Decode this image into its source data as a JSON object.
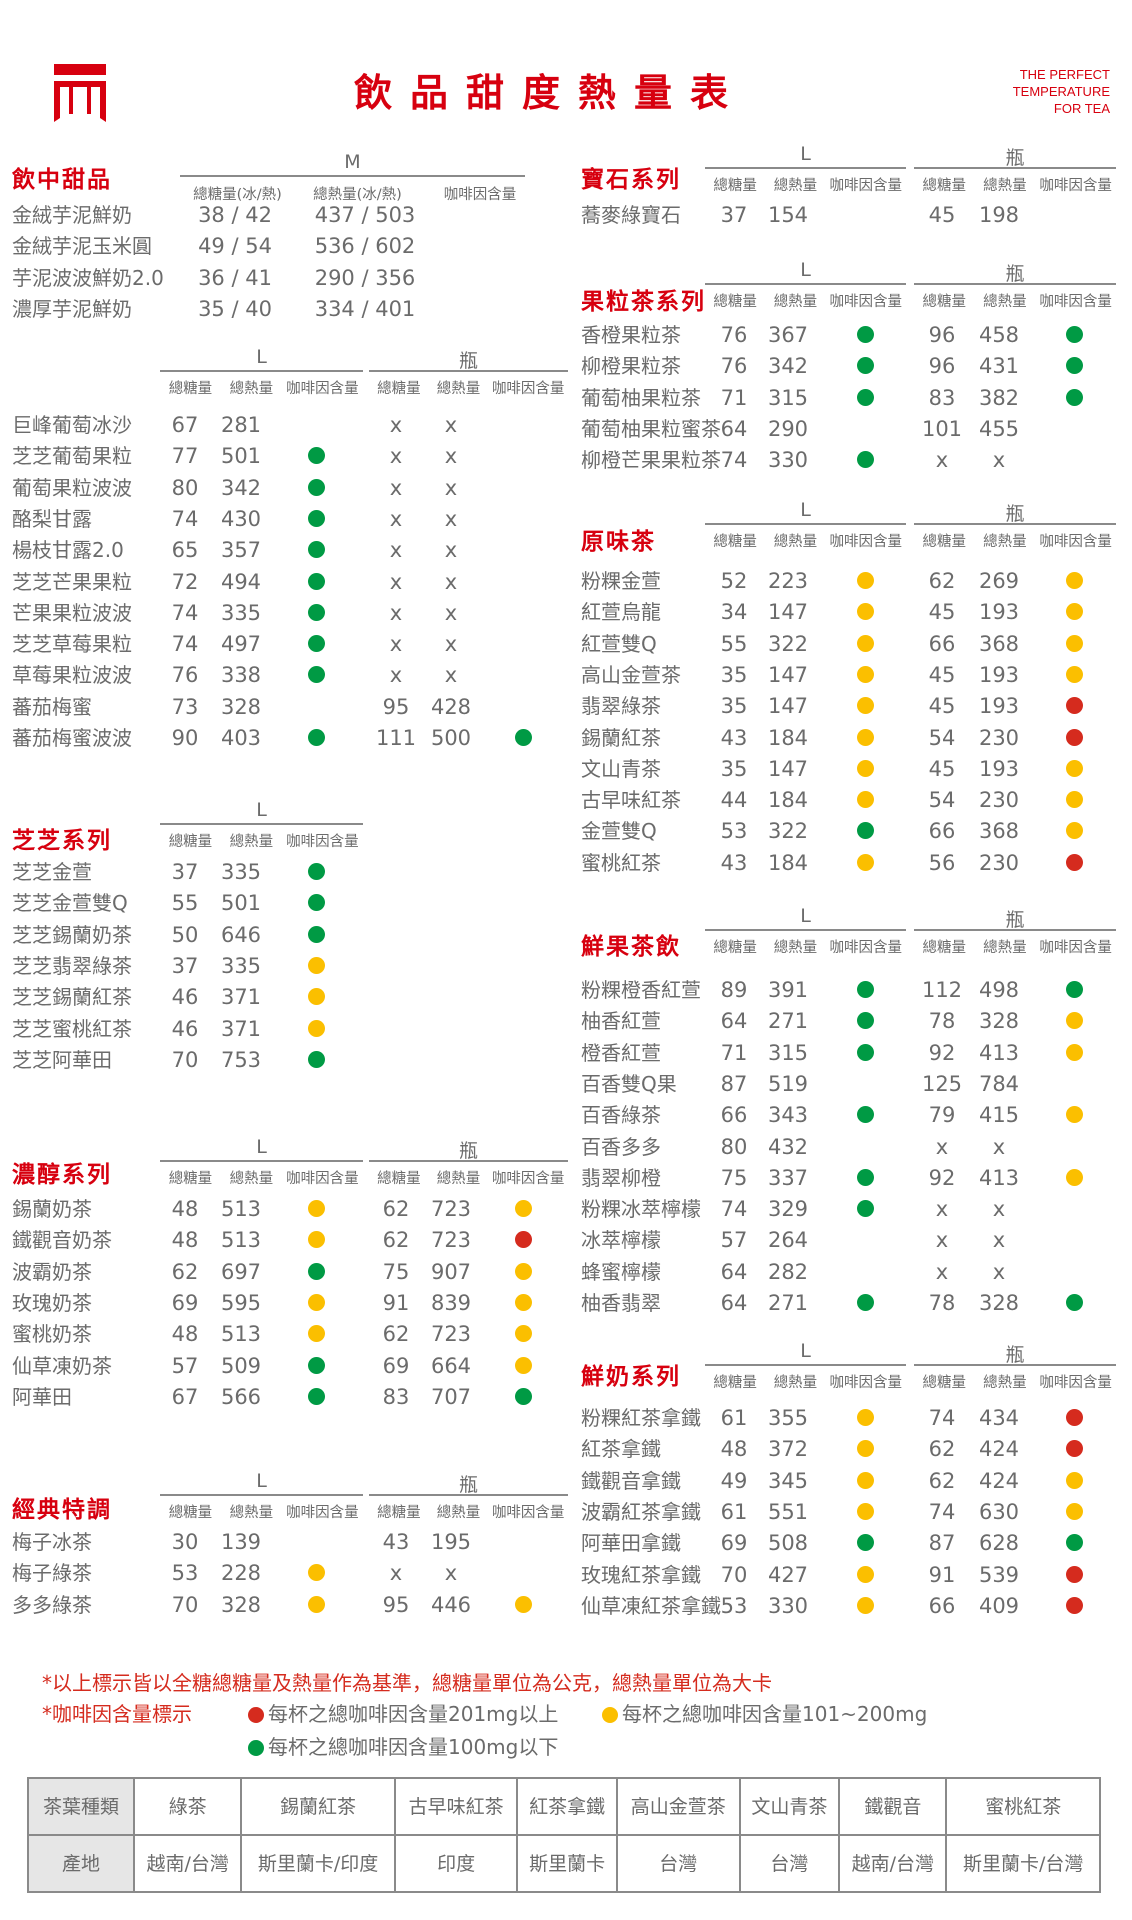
{
  "header": {
    "title": "飲品甜度熱量表",
    "tagline": [
      "THE PERFECT",
      "TEMPERATURE",
      "FOR TEA"
    ]
  },
  "caffeine_colors": {
    "red": "#d52b1e",
    "yellow": "#fbbf00",
    "green": "#009a44"
  },
  "brand_color": "#d7000f",
  "sections": [
    {
      "id": "dessert",
      "title": "飲中甜品",
      "sizes": [
        "M"
      ],
      "subheaders": [
        "總糖量(冰/熱)",
        "總熱量(冰/熱)",
        "咖啡因含量"
      ],
      "rows": [
        {
          "name": "金絨芋泥鮮奶",
          "values": [
            "38 / 42",
            "437 / 503",
            ""
          ]
        },
        {
          "name": "金絨芋泥玉米圓",
          "values": [
            "49 / 54",
            "536 / 602",
            ""
          ]
        },
        {
          "name": "芋泥波波鮮奶2.0",
          "values": [
            "36 / 41",
            "290 / 356",
            ""
          ]
        },
        {
          "name": "濃厚芋泥鮮奶",
          "values": [
            "35 / 40",
            "334 / 401",
            ""
          ]
        }
      ]
    },
    {
      "id": "fruit-smoothie",
      "title": "",
      "sizes": [
        "L",
        "瓶"
      ],
      "subheaders": [
        "總糖量",
        "總熱量",
        "咖啡因含量",
        "總糖量",
        "總熱量",
        "咖啡因含量"
      ],
      "rows": [
        {
          "name": "巨峰葡萄冰沙",
          "values": [
            "67",
            "281",
            "",
            "x",
            "x",
            ""
          ]
        },
        {
          "name": "芝芝葡萄果粒",
          "values": [
            "77",
            "501",
            "green",
            "x",
            "x",
            ""
          ]
        },
        {
          "name": "葡萄果粒波波",
          "values": [
            "80",
            "342",
            "green",
            "x",
            "x",
            ""
          ]
        },
        {
          "name": "酪梨甘露",
          "values": [
            "74",
            "430",
            "green",
            "x",
            "x",
            ""
          ]
        },
        {
          "name": "楊枝甘露2.0",
          "values": [
            "65",
            "357",
            "green",
            "x",
            "x",
            ""
          ]
        },
        {
          "name": "芝芝芒果果粒",
          "values": [
            "72",
            "494",
            "green",
            "x",
            "x",
            ""
          ]
        },
        {
          "name": "芒果果粒波波",
          "values": [
            "74",
            "335",
            "green",
            "x",
            "x",
            ""
          ]
        },
        {
          "name": "芝芝草莓果粒",
          "values": [
            "74",
            "497",
            "green",
            "x",
            "x",
            ""
          ]
        },
        {
          "name": "草莓果粒波波",
          "values": [
            "76",
            "338",
            "green",
            "x",
            "x",
            ""
          ]
        },
        {
          "name": "蕃茄梅蜜",
          "values": [
            "73",
            "328",
            "",
            "95",
            "428",
            ""
          ]
        },
        {
          "name": "蕃茄梅蜜波波",
          "values": [
            "90",
            "403",
            "green",
            "111",
            "500",
            "green"
          ]
        }
      ]
    },
    {
      "id": "zhizhi",
      "title": "芝芝系列",
      "sizes": [
        "L"
      ],
      "subheaders": [
        "總糖量",
        "總熱量",
        "咖啡因含量"
      ],
      "rows": [
        {
          "name": "芝芝金萱",
          "values": [
            "37",
            "335",
            "green"
          ]
        },
        {
          "name": "芝芝金萱雙Q",
          "values": [
            "55",
            "501",
            "green"
          ]
        },
        {
          "name": "芝芝錫蘭奶茶",
          "values": [
            "50",
            "646",
            "green"
          ]
        },
        {
          "name": "芝芝翡翠綠茶",
          "values": [
            "37",
            "335",
            "yellow"
          ]
        },
        {
          "name": "芝芝錫蘭紅茶",
          "values": [
            "46",
            "371",
            "yellow"
          ]
        },
        {
          "name": "芝芝蜜桃紅茶",
          "values": [
            "46",
            "371",
            "yellow"
          ]
        },
        {
          "name": "芝芝阿華田",
          "values": [
            "70",
            "753",
            "green"
          ]
        }
      ]
    },
    {
      "id": "rich",
      "title": "濃醇系列",
      "sizes": [
        "L",
        "瓶"
      ],
      "subheaders": [
        "總糖量",
        "總熱量",
        "咖啡因含量",
        "總糖量",
        "總熱量",
        "咖啡因含量"
      ],
      "rows": [
        {
          "name": "錫蘭奶茶",
          "values": [
            "48",
            "513",
            "yellow",
            "62",
            "723",
            "yellow"
          ]
        },
        {
          "name": "鐵觀音奶茶",
          "values": [
            "48",
            "513",
            "yellow",
            "62",
            "723",
            "red"
          ]
        },
        {
          "name": "波霸奶茶",
          "values": [
            "62",
            "697",
            "green",
            "75",
            "907",
            "yellow"
          ]
        },
        {
          "name": "玫瑰奶茶",
          "values": [
            "69",
            "595",
            "yellow",
            "91",
            "839",
            "yellow"
          ]
        },
        {
          "name": "蜜桃奶茶",
          "values": [
            "48",
            "513",
            "yellow",
            "62",
            "723",
            "yellow"
          ]
        },
        {
          "name": "仙草凍奶茶",
          "values": [
            "57",
            "509",
            "green",
            "69",
            "664",
            "yellow"
          ]
        },
        {
          "name": "阿華田",
          "values": [
            "67",
            "566",
            "green",
            "83",
            "707",
            "green"
          ]
        }
      ]
    },
    {
      "id": "classic",
      "title": "經典特調",
      "sizes": [
        "L",
        "瓶"
      ],
      "subheaders": [
        "總糖量",
        "總熱量",
        "咖啡因含量",
        "總糖量",
        "總熱量",
        "咖啡因含量"
      ],
      "rows": [
        {
          "name": "梅子冰茶",
          "values": [
            "30",
            "139",
            "",
            "43",
            "195",
            ""
          ]
        },
        {
          "name": "梅子綠茶",
          "values": [
            "53",
            "228",
            "yellow",
            "x",
            "x",
            ""
          ]
        },
        {
          "name": "多多綠茶",
          "values": [
            "70",
            "328",
            "yellow",
            "95",
            "446",
            "yellow"
          ]
        }
      ]
    },
    {
      "id": "gem",
      "title": "寶石系列",
      "sizes": [
        "L",
        "瓶"
      ],
      "subheaders": [
        "總糖量",
        "總熱量",
        "咖啡因含量",
        "總糖量",
        "總熱量",
        "咖啡因含量"
      ],
      "rows": [
        {
          "name": "蕎麥綠寶石",
          "values": [
            "37",
            "154",
            "",
            "45",
            "198",
            ""
          ]
        }
      ]
    },
    {
      "id": "fruit-tea",
      "title": "果粒茶系列",
      "sizes": [
        "L",
        "瓶"
      ],
      "subheaders": [
        "總糖量",
        "總熱量",
        "咖啡因含量",
        "總糖量",
        "總熱量",
        "咖啡因含量"
      ],
      "rows": [
        {
          "name": "香橙果粒茶",
          "values": [
            "76",
            "367",
            "green",
            "96",
            "458",
            "green"
          ]
        },
        {
          "name": "柳橙果粒茶",
          "values": [
            "76",
            "342",
            "green",
            "96",
            "431",
            "green"
          ]
        },
        {
          "name": "葡萄柚果粒茶",
          "values": [
            "71",
            "315",
            "green",
            "83",
            "382",
            "green"
          ]
        },
        {
          "name": "葡萄柚果粒蜜茶",
          "values": [
            "64",
            "290",
            "",
            "101",
            "455",
            ""
          ]
        },
        {
          "name": "柳橙芒果果粒茶",
          "values": [
            "74",
            "330",
            "green",
            "x",
            "x",
            ""
          ]
        }
      ]
    },
    {
      "id": "original",
      "title": "原味茶",
      "sizes": [
        "L",
        "瓶"
      ],
      "subheaders": [
        "總糖量",
        "總熱量",
        "咖啡因含量",
        "總糖量",
        "總熱量",
        "咖啡因含量"
      ],
      "rows": [
        {
          "name": "粉粿金萱",
          "values": [
            "52",
            "223",
            "yellow",
            "62",
            "269",
            "yellow"
          ]
        },
        {
          "name": "紅萱烏龍",
          "values": [
            "34",
            "147",
            "yellow",
            "45",
            "193",
            "yellow"
          ]
        },
        {
          "name": "紅萱雙Q",
          "values": [
            "55",
            "322",
            "yellow",
            "66",
            "368",
            "yellow"
          ]
        },
        {
          "name": "高山金萱茶",
          "values": [
            "35",
            "147",
            "yellow",
            "45",
            "193",
            "yellow"
          ]
        },
        {
          "name": "翡翠綠茶",
          "values": [
            "35",
            "147",
            "yellow",
            "45",
            "193",
            "red"
          ]
        },
        {
          "name": "錫蘭紅茶",
          "values": [
            "43",
            "184",
            "yellow",
            "54",
            "230",
            "red"
          ]
        },
        {
          "name": "文山青茶",
          "values": [
            "35",
            "147",
            "yellow",
            "45",
            "193",
            "yellow"
          ]
        },
        {
          "name": "古早味紅茶",
          "values": [
            "44",
            "184",
            "yellow",
            "54",
            "230",
            "yellow"
          ]
        },
        {
          "name": "金萱雙Q",
          "values": [
            "53",
            "322",
            "green",
            "66",
            "368",
            "yellow"
          ]
        },
        {
          "name": "蜜桃紅茶",
          "values": [
            "43",
            "184",
            "yellow",
            "56",
            "230",
            "red"
          ]
        }
      ]
    },
    {
      "id": "fresh-fruit",
      "title": "鮮果茶飲",
      "sizes": [
        "L",
        "瓶"
      ],
      "subheaders": [
        "總糖量",
        "總熱量",
        "咖啡因含量",
        "總糖量",
        "總熱量",
        "咖啡因含量"
      ],
      "rows": [
        {
          "name": "粉粿橙香紅萱",
          "values": [
            "89",
            "391",
            "green",
            "112",
            "498",
            "green"
          ]
        },
        {
          "name": "柚香紅萱",
          "values": [
            "64",
            "271",
            "green",
            "78",
            "328",
            "yellow"
          ]
        },
        {
          "name": "橙香紅萱",
          "values": [
            "71",
            "315",
            "green",
            "92",
            "413",
            "yellow"
          ]
        },
        {
          "name": "百香雙Q果",
          "values": [
            "87",
            "519",
            "",
            "125",
            "784",
            ""
          ]
        },
        {
          "name": "百香綠茶",
          "values": [
            "66",
            "343",
            "green",
            "79",
            "415",
            "yellow"
          ]
        },
        {
          "name": "百香多多",
          "values": [
            "80",
            "432",
            "",
            "x",
            "x",
            ""
          ]
        },
        {
          "name": "翡翠柳橙",
          "values": [
            "75",
            "337",
            "green",
            "92",
            "413",
            "yellow"
          ]
        },
        {
          "name": "粉粿冰萃檸檬",
          "values": [
            "74",
            "329",
            "green",
            "x",
            "x",
            ""
          ]
        },
        {
          "name": "冰萃檸檬",
          "values": [
            "57",
            "264",
            "",
            "x",
            "x",
            ""
          ]
        },
        {
          "name": "蜂蜜檸檬",
          "values": [
            "64",
            "282",
            "",
            "x",
            "x",
            ""
          ]
        },
        {
          "name": "柚香翡翠",
          "values": [
            "64",
            "271",
            "green",
            "78",
            "328",
            "green"
          ]
        }
      ]
    },
    {
      "id": "fresh-milk",
      "title": "鮮奶系列",
      "sizes": [
        "L",
        "瓶"
      ],
      "subheaders": [
        "總糖量",
        "總熱量",
        "咖啡因含量",
        "總糖量",
        "總熱量",
        "咖啡因含量"
      ],
      "rows": [
        {
          "name": "粉粿紅茶拿鐵",
          "values": [
            "61",
            "355",
            "yellow",
            "74",
            "434",
            "red"
          ]
        },
        {
          "name": "紅茶拿鐵",
          "values": [
            "48",
            "372",
            "yellow",
            "62",
            "424",
            "red"
          ]
        },
        {
          "name": "鐵觀音拿鐵",
          "values": [
            "49",
            "345",
            "yellow",
            "62",
            "424",
            "yellow"
          ]
        },
        {
          "name": "波霸紅茶拿鐵",
          "values": [
            "61",
            "551",
            "yellow",
            "74",
            "630",
            "yellow"
          ]
        },
        {
          "name": "阿華田拿鐵",
          "values": [
            "69",
            "508",
            "green",
            "87",
            "628",
            "green"
          ]
        },
        {
          "name": "玫瑰紅茶拿鐵",
          "values": [
            "70",
            "427",
            "yellow",
            "91",
            "539",
            "red"
          ]
        },
        {
          "name": "仙草凍紅茶拿鐵",
          "values": [
            "53",
            "330",
            "yellow",
            "66",
            "409",
            "red"
          ]
        }
      ]
    }
  ],
  "notes": {
    "basis": "*以上標示皆以全糖總糖量及熱量作為基準，總糖量單位為公克，總熱量單位為大卡",
    "caffeine_label": "*咖啡因含量標示",
    "legend": [
      {
        "color": "red",
        "text": "每杯之總咖啡因含量201mg以上"
      },
      {
        "color": "yellow",
        "text": "每杯之總咖啡因含量101~200mg"
      },
      {
        "color": "green",
        "text": "每杯之總咖啡因含量100mg以下"
      }
    ]
  },
  "origin_table": {
    "row_headers": [
      "茶葉種類",
      "產地"
    ],
    "teas": [
      "綠茶",
      "錫蘭紅茶",
      "古早味紅茶",
      "紅茶拿鐵",
      "高山金萱茶",
      "文山青茶",
      "鐵觀音",
      "蜜桃紅茶"
    ],
    "origins": [
      "越南/台灣",
      "斯里蘭卡/印度",
      "印度",
      "斯里蘭卡",
      "台灣",
      "台灣",
      "越南/台灣",
      "斯里蘭卡/台灣"
    ]
  }
}
